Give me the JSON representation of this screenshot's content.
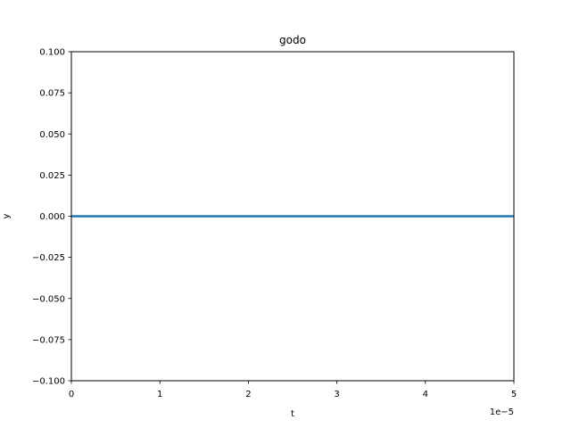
{
  "chart_data": {
    "type": "line",
    "title": "godo",
    "xlabel": "t",
    "ylabel": "y",
    "x_offset_text": "1e−5",
    "xlim": [
      0,
      5e-05
    ],
    "ylim": [
      -0.1,
      0.1
    ],
    "grid": false,
    "x_ticks": [
      0,
      1e-05,
      2e-05,
      3e-05,
      4e-05,
      5e-05
    ],
    "x_tick_labels": [
      "0",
      "1",
      "2",
      "3",
      "4",
      "5"
    ],
    "y_ticks": [
      0.1,
      0.075,
      0.05,
      0.025,
      0,
      -0.025,
      -0.05,
      -0.075,
      -0.1
    ],
    "y_tick_labels": [
      "0.100",
      "0.075",
      "0.050",
      "0.025",
      "0.000",
      "−0.025",
      "−0.050",
      "−0.075",
      "−0.100"
    ],
    "series": [
      {
        "color": "#1f77b4",
        "x": [
          0,
          5e-05
        ],
        "y": [
          0,
          0
        ]
      }
    ]
  }
}
